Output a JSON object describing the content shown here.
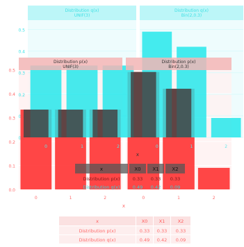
{
  "chart_data": [
    {
      "type": "bar",
      "layer": "px",
      "panels": [
        {
          "strip": "Distribution p(x)\nUNIF(3)",
          "categories": [
            "0",
            "1",
            "2"
          ],
          "values": [
            0.333,
            0.333,
            0.333
          ]
        },
        {
          "strip": "Distribution p(x)\nBin(2,0.3)",
          "categories": [
            "0",
            "1",
            "2"
          ],
          "values": [
            0.49,
            0.42,
            0.09
          ]
        }
      ],
      "ylim": [
        0,
        0.55
      ],
      "yticks": [
        "0.0",
        "0.1",
        "0.2",
        "0.3",
        "0.4",
        "0.5"
      ],
      "xlabel": "x",
      "colors": {
        "bar": "#ff3333",
        "overlay": "#444444",
        "strip": "#f2b6b6"
      }
    },
    {
      "type": "bar",
      "layer": "qx",
      "panels": [
        {
          "strip": "Distribution q(x)\nUNIF(3)",
          "categories": [
            "0",
            "1",
            "2"
          ],
          "values": [
            0.333,
            0.333,
            0.333
          ]
        },
        {
          "strip": "Distribution q(x)\nBin(2,0.3)",
          "categories": [
            "0",
            "1",
            "2"
          ],
          "values": [
            0.49,
            0.42,
            0.09
          ]
        }
      ],
      "ylim": [
        0,
        0.55
      ],
      "yticks": [
        "0.0",
        "0.1",
        "0.2",
        "0.3",
        "0.4",
        "0.5"
      ],
      "xlabel": "x",
      "colors": {
        "bar": "#1fe6ea",
        "strip": "#b5f5f7"
      }
    },
    {
      "type": "table",
      "headers": [
        "x",
        "X0",
        "X1",
        "X2"
      ],
      "rows": [
        [
          "Distribution p(x)",
          "0.33",
          "0.33",
          "0.33"
        ],
        [
          "Distribution q(x)",
          "0.49",
          "0.42",
          "0.09"
        ]
      ]
    }
  ]
}
